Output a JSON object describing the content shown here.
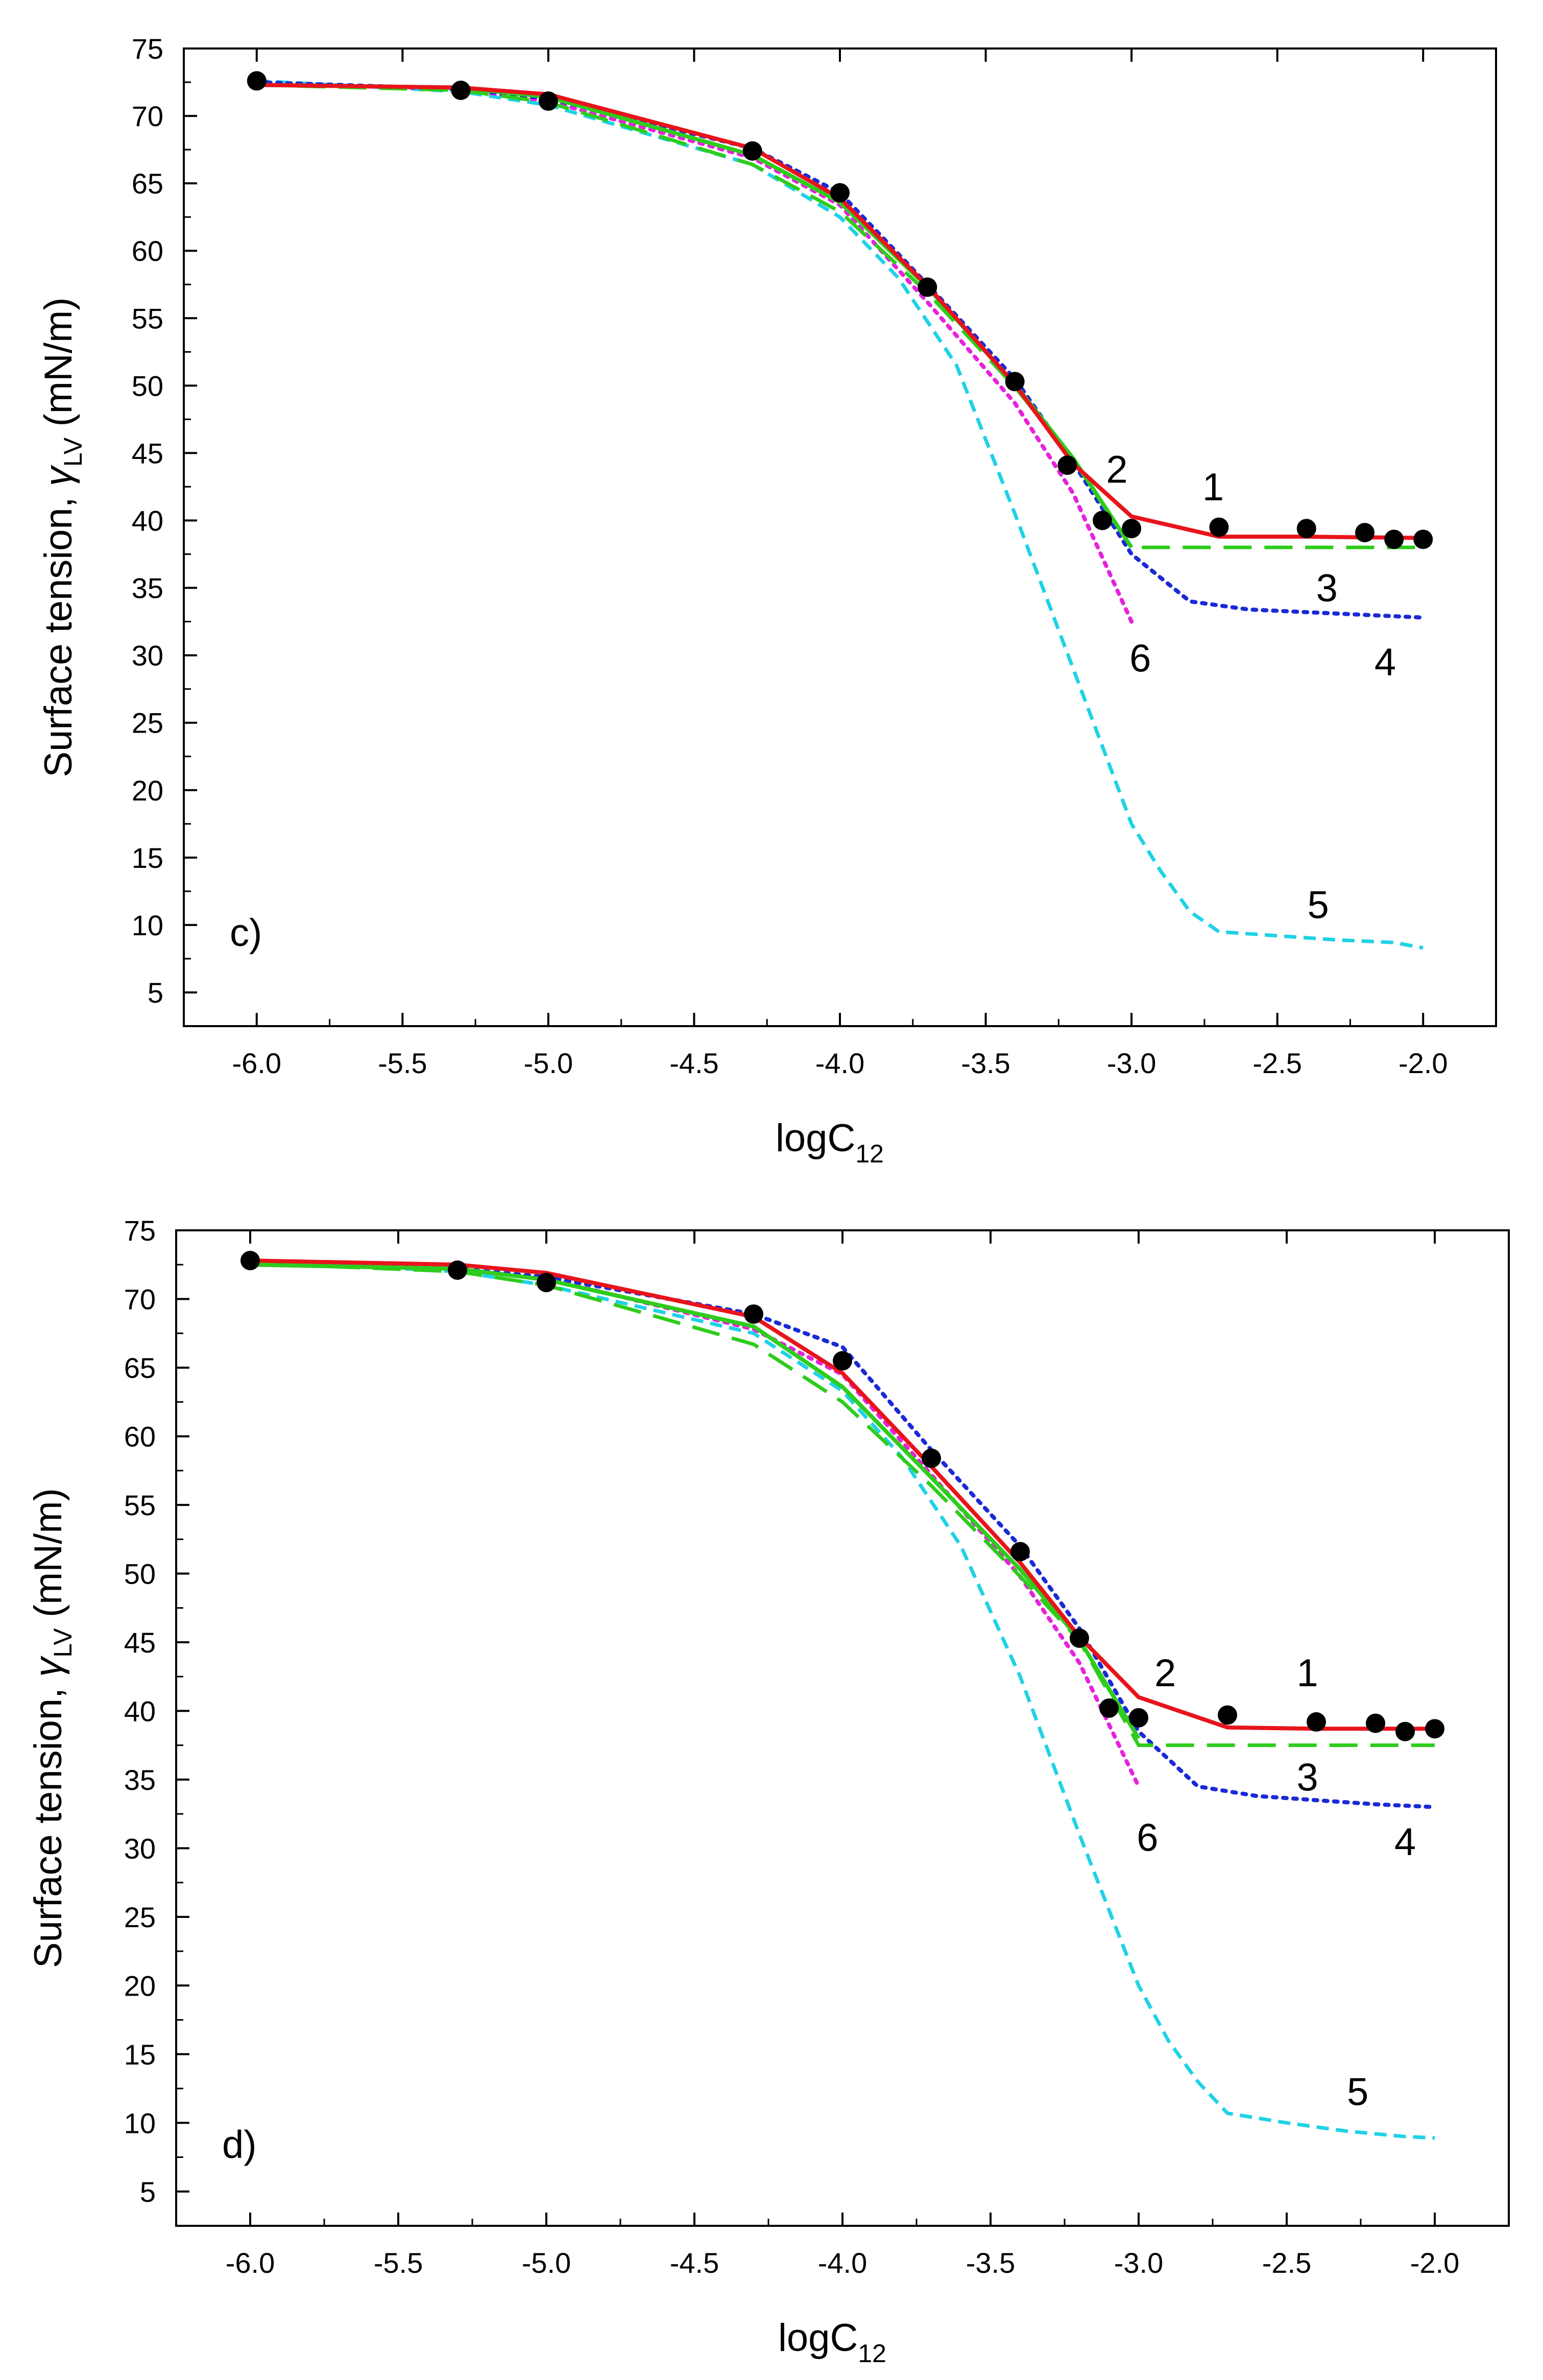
{
  "chart_data": [
    {
      "type": "line",
      "panel_label": "c)",
      "xlabel": "logC",
      "xlabel_sub": "12",
      "ylabel": "Surface tension, ",
      "ylabel_greek": "γ",
      "ylabel_sub": "LV",
      "ylabel_unit": " (mN/m)",
      "xlim": [
        -6.25,
        -1.75
      ],
      "ylim": [
        2.5,
        75
      ],
      "xticks": [
        "-6.0",
        "-5.5",
        "-5.0",
        "-4.5",
        "-4.0",
        "-3.5",
        "-3.0",
        "-2.5",
        "-2.0"
      ],
      "yticks": [
        "5",
        "10",
        "15",
        "20",
        "25",
        "30",
        "35",
        "40",
        "45",
        "50",
        "55",
        "60",
        "65",
        "70",
        "75"
      ],
      "experimental_points": {
        "x": [
          -6.0,
          -5.3,
          -5.0,
          -4.3,
          -4.0,
          -3.7,
          -3.4,
          -3.22,
          -3.1,
          -3.0,
          -2.7,
          -2.4,
          -2.2,
          -2.1,
          -2.0
        ],
        "y": [
          72.6,
          71.9,
          71.1,
          67.4,
          64.3,
          57.3,
          50.3,
          44.1,
          40.0,
          39.4,
          39.5,
          39.4,
          39.1,
          38.6,
          38.6
        ]
      },
      "series": [
        {
          "name": "1",
          "color": "#e8141b",
          "style": "solid",
          "x": [
            -6.0,
            -5.3,
            -5.0,
            -4.3,
            -4.0,
            -3.7,
            -3.4,
            -3.2,
            -3.0,
            -2.7,
            -2.4,
            -2.0
          ],
          "y": [
            72.3,
            72.1,
            71.6,
            67.6,
            63.9,
            57.4,
            50.1,
            44.2,
            40.3,
            38.8,
            38.8,
            38.7
          ],
          "label_at": [
            -2.72,
            41.5
          ]
        },
        {
          "name": "2",
          "color": "#2ecc1c",
          "style": "solid",
          "x": [
            -6.0,
            -5.3,
            -5.0,
            -4.3,
            -4.0,
            -3.7,
            -3.4,
            -3.2,
            -3.0
          ],
          "y": [
            72.3,
            72.1,
            71.4,
            67.1,
            63.6,
            57.3,
            50.1,
            44.6,
            38.0
          ],
          "label_at": [
            -3.05,
            42.8
          ]
        },
        {
          "name": "3",
          "color": "#2ecc1c",
          "style": "dashed",
          "x": [
            -6.0,
            -5.3,
            -5.0,
            -4.3,
            -4.0,
            -3.7,
            -3.4,
            -3.2,
            -3.0,
            -2.7,
            -2.4,
            -2.0
          ],
          "y": [
            72.3,
            71.9,
            71.0,
            66.4,
            62.9,
            56.9,
            49.9,
            44.5,
            38.0,
            38.0,
            38.0,
            38.0
          ],
          "label_at": [
            -2.33,
            34.0
          ]
        },
        {
          "name": "4",
          "color": "#1a2ad6",
          "style": "dotted",
          "x": [
            -6.0,
            -5.3,
            -5.0,
            -4.3,
            -4.0,
            -3.7,
            -3.4,
            -3.2,
            -3.0,
            -2.8,
            -2.6,
            -2.4,
            -2.2,
            -2.0
          ],
          "y": [
            72.5,
            72.0,
            71.3,
            67.6,
            64.3,
            57.5,
            50.5,
            44.3,
            37.5,
            34.0,
            33.4,
            33.2,
            33.0,
            32.8
          ],
          "label_at": [
            -2.13,
            28.5
          ]
        },
        {
          "name": "5",
          "color": "#1ed2e6",
          "style": "dashed-short",
          "x": [
            -6.0,
            -5.3,
            -5.0,
            -4.3,
            -4.0,
            -3.8,
            -3.6,
            -3.4,
            -3.2,
            -3.0,
            -2.9,
            -2.8,
            -2.7,
            -2.5,
            -2.3,
            -2.1,
            -2.0
          ],
          "y": [
            72.6,
            71.8,
            70.8,
            66.4,
            62.5,
            58.0,
            51.5,
            40.5,
            29.0,
            17.5,
            14.0,
            11.0,
            9.5,
            9.2,
            8.9,
            8.7,
            8.3
          ],
          "label_at": [
            -2.36,
            10.5
          ]
        },
        {
          "name": "6",
          "color": "#e622dc",
          "style": "dotted",
          "x": [
            -6.0,
            -5.3,
            -5.0,
            -4.3,
            -4.0,
            -3.7,
            -3.4,
            -3.2,
            -3.0
          ],
          "y": [
            72.4,
            72.0,
            71.1,
            66.9,
            63.4,
            56.2,
            48.7,
            42.0,
            32.5
          ],
          "label_at": [
            -2.97,
            28.8
          ]
        }
      ]
    },
    {
      "type": "line",
      "panel_label": "d)",
      "xlabel": "logC",
      "xlabel_sub": "12",
      "ylabel": "Surface tension, ",
      "ylabel_greek": "γ",
      "ylabel_sub": "LV",
      "ylabel_unit": " (mN/m)",
      "xlim": [
        -6.25,
        -1.75
      ],
      "ylim": [
        2.5,
        75
      ],
      "xticks": [
        "-6.0",
        "-5.5",
        "-5.0",
        "-4.5",
        "-4.0",
        "-3.5",
        "-3.0",
        "-2.5",
        "-2.0"
      ],
      "yticks": [
        "5",
        "10",
        "15",
        "20",
        "25",
        "30",
        "35",
        "40",
        "45",
        "50",
        "55",
        "60",
        "65",
        "70",
        "75"
      ],
      "experimental_points": {
        "x": [
          -6.0,
          -5.3,
          -5.0,
          -4.3,
          -4.0,
          -3.7,
          -3.4,
          -3.2,
          -3.1,
          -3.0,
          -2.7,
          -2.4,
          -2.2,
          -2.1,
          -2.0
        ],
        "y": [
          72.8,
          72.1,
          71.2,
          68.9,
          65.5,
          58.4,
          51.6,
          45.3,
          40.2,
          39.5,
          39.7,
          39.2,
          39.1,
          38.5,
          38.7
        ]
      },
      "series": [
        {
          "name": "1",
          "color": "#e8141b",
          "style": "solid",
          "x": [
            -6.0,
            -5.3,
            -5.0,
            -4.3,
            -4.0,
            -3.7,
            -3.4,
            -3.2,
            -3.0,
            -2.7,
            -2.4,
            -2.0
          ],
          "y": [
            72.8,
            72.5,
            71.9,
            68.7,
            64.6,
            57.8,
            50.8,
            45.4,
            41.0,
            38.8,
            38.7,
            38.7
          ],
          "label_at": [
            -2.43,
            41.8
          ]
        },
        {
          "name": "2",
          "color": "#2ecc1c",
          "style": "solid",
          "x": [
            -6.0,
            -5.3,
            -5.0,
            -4.3,
            -4.0,
            -3.7,
            -3.4,
            -3.2,
            -3.0
          ],
          "y": [
            72.5,
            72.2,
            71.4,
            68.0,
            63.6,
            57.0,
            50.3,
            45.2,
            38.0
          ],
          "label_at": [
            -2.91,
            41.8
          ]
        },
        {
          "name": "3",
          "color": "#2ecc1c",
          "style": "dashed",
          "x": [
            -6.0,
            -5.3,
            -5.0,
            -4.3,
            -4.0,
            -3.7,
            -3.4,
            -3.2,
            -3.0,
            -2.7,
            -2.4,
            -2.0
          ],
          "y": [
            72.6,
            72.0,
            71.0,
            66.7,
            62.5,
            56.4,
            49.8,
            45.1,
            37.5,
            37.5,
            37.5,
            37.5
          ],
          "label_at": [
            -2.43,
            34.2
          ]
        },
        {
          "name": "4",
          "color": "#1a2ad6",
          "style": "dotted",
          "x": [
            -6.0,
            -5.3,
            -5.0,
            -4.3,
            -4.0,
            -3.7,
            -3.4,
            -3.2,
            -3.0,
            -2.8,
            -2.6,
            -2.4,
            -2.2,
            -2.0
          ],
          "y": [
            72.7,
            72.2,
            71.6,
            68.9,
            66.5,
            59.0,
            52.0,
            46.0,
            38.5,
            34.5,
            33.8,
            33.5,
            33.2,
            33.0
          ],
          "label_at": [
            -2.1,
            29.5
          ]
        },
        {
          "name": "5",
          "color": "#1ed2e6",
          "style": "dashed-short",
          "x": [
            -6.0,
            -5.3,
            -5.0,
            -4.3,
            -4.0,
            -3.8,
            -3.6,
            -3.4,
            -3.2,
            -3.0,
            -2.9,
            -2.8,
            -2.7,
            -2.5,
            -2.3,
            -2.1,
            -2.0
          ],
          "y": [
            72.8,
            72.0,
            71.0,
            67.5,
            63.3,
            58.5,
            52.0,
            42.5,
            31.0,
            20.0,
            16.0,
            13.0,
            10.7,
            10.0,
            9.4,
            9.0,
            8.9
          ],
          "label_at": [
            -2.26,
            11.3
          ]
        },
        {
          "name": "6",
          "color": "#e622dc",
          "style": "dotted",
          "x": [
            -6.0,
            -5.3,
            -5.0,
            -4.3,
            -4.0,
            -3.7,
            -3.4,
            -3.2,
            -3.0
          ],
          "y": [
            72.5,
            72.2,
            71.5,
            67.8,
            64.5,
            57.2,
            49.8,
            43.5,
            34.5
          ],
          "label_at": [
            -2.97,
            29.8
          ]
        }
      ]
    }
  ]
}
